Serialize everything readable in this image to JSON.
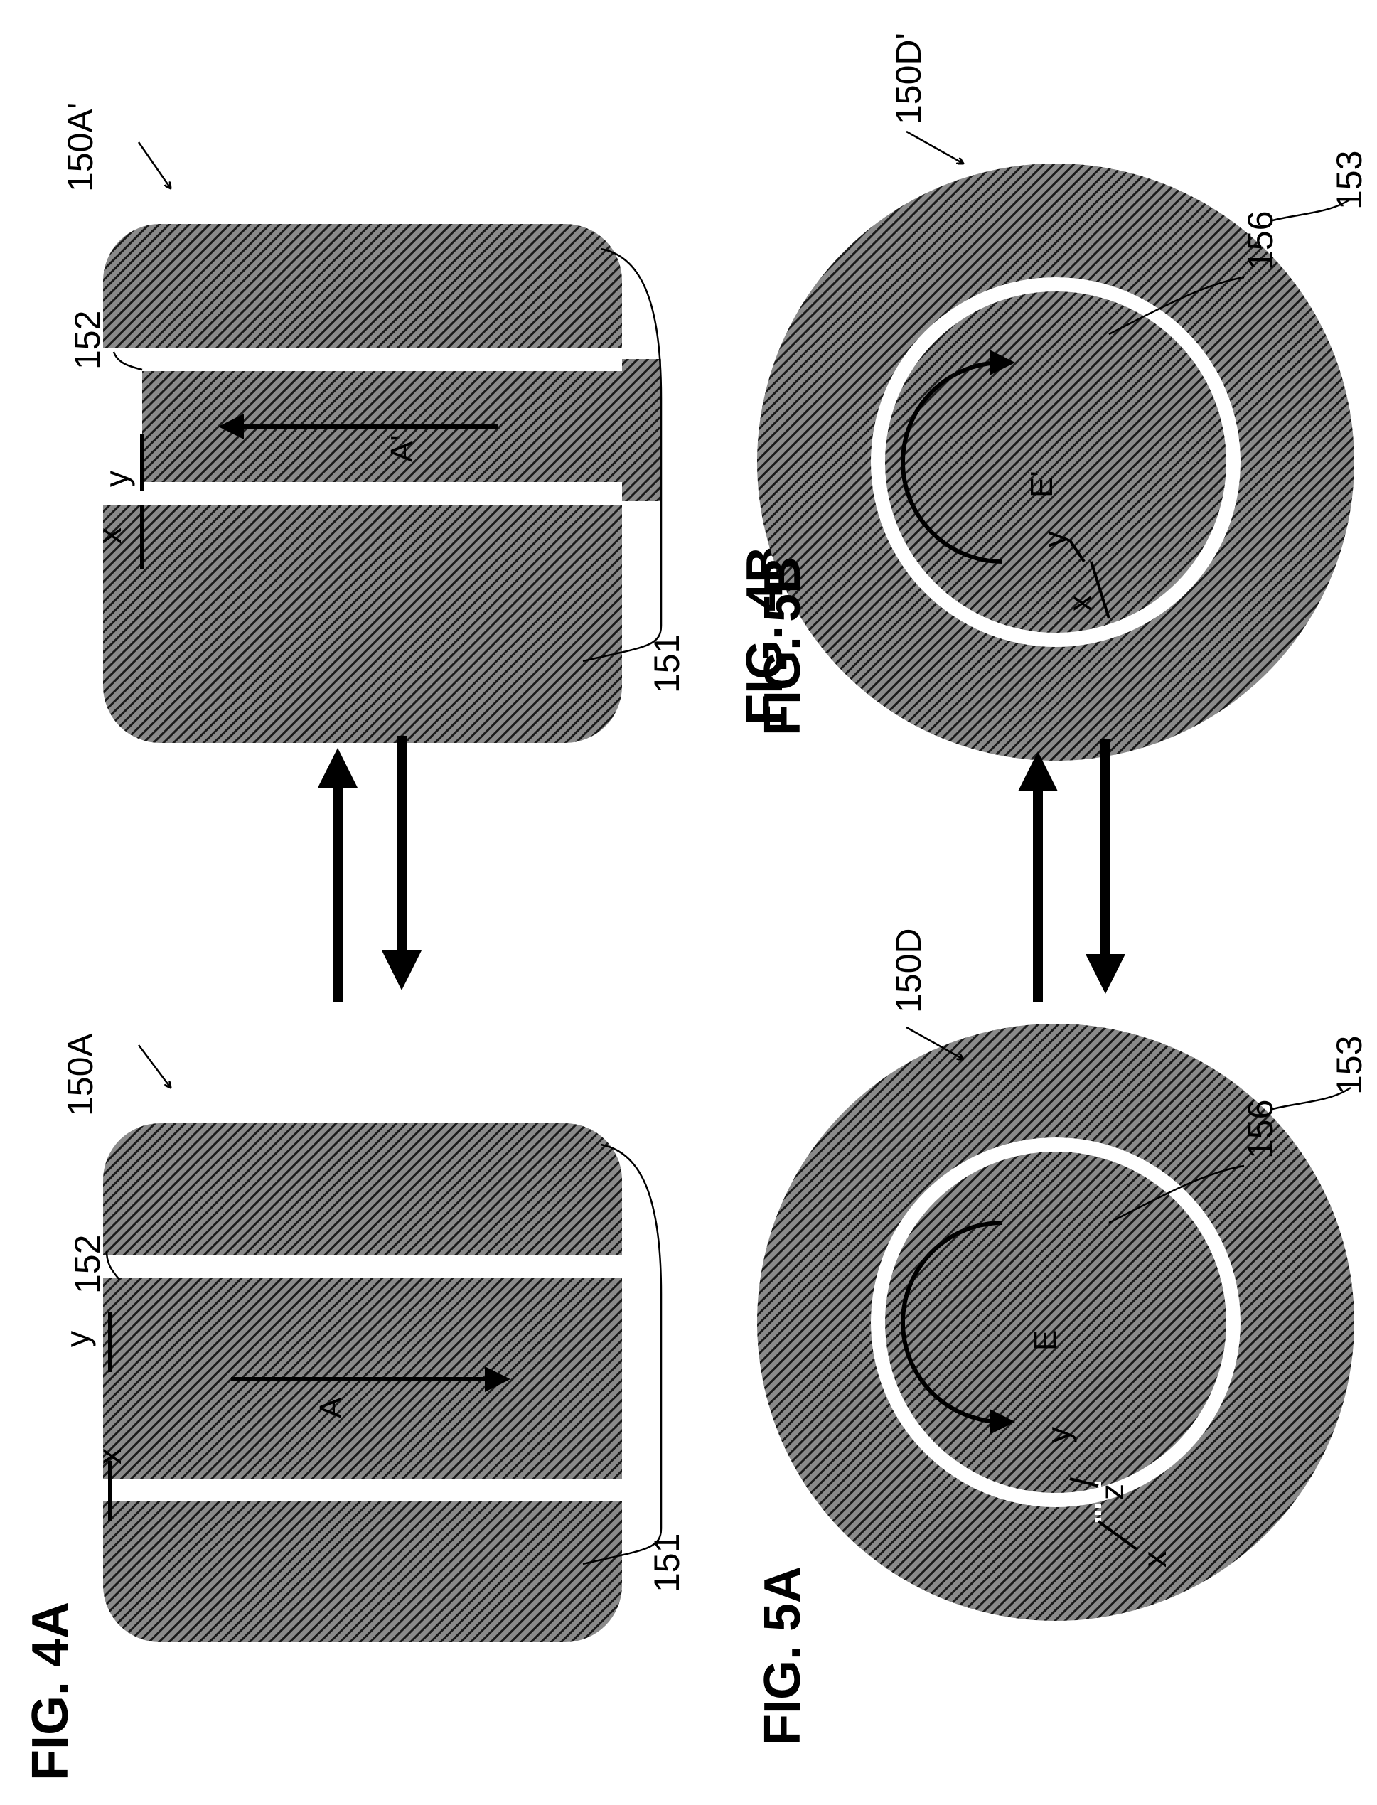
{
  "figures": {
    "fig4a": {
      "title": "FIG. 4A",
      "ref_device": "150A",
      "ref_outer": "151",
      "ref_inner": "152",
      "motion_label": "A",
      "axis_x": "x",
      "axis_y": "y"
    },
    "fig4b": {
      "title": "FIG. 4B",
      "ref_device": "150A'",
      "ref_outer": "151",
      "ref_inner": "152",
      "motion_label": "A'",
      "axis_x": "x",
      "axis_y": "y"
    },
    "fig5a": {
      "title": "FIG. 5A",
      "ref_device": "150D",
      "ref_inner": "156",
      "ref_outer": "153",
      "motion_label": "E",
      "axis_x": "x",
      "axis_y": "y",
      "axis_z": "z"
    },
    "fig5b": {
      "title": "FIG. 5B",
      "ref_device": "150D'",
      "ref_inner": "156",
      "ref_outer": "153",
      "motion_label": "E'",
      "axis_x": "x",
      "axis_y": "y"
    }
  },
  "colors": {
    "ink": "#000000",
    "hatch_fill": "#2b2b2b",
    "background": "#ffffff"
  }
}
